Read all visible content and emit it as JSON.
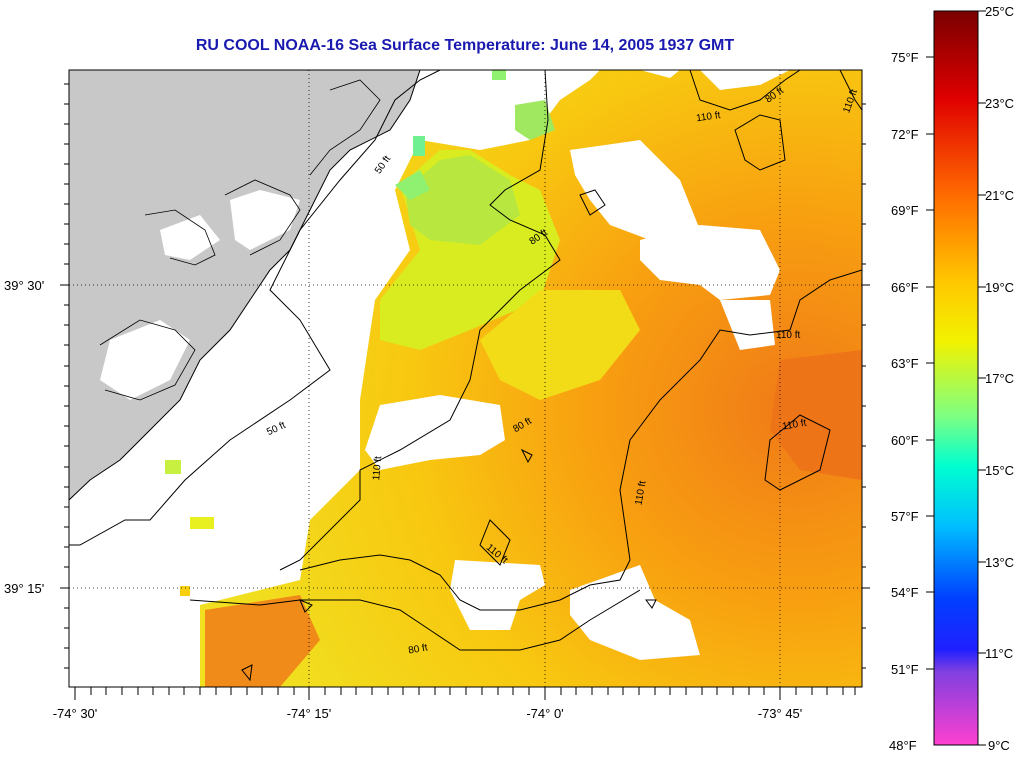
{
  "title": "RU COOL  NOAA-16  Sea Surface Temperature:  June 14, 2005 1937 GMT",
  "map": {
    "lat_labels": [
      {
        "text": "39° 30'",
        "value": 39.5
      },
      {
        "text": "39° 15'",
        "value": 39.25
      }
    ],
    "lon_labels": [
      {
        "text": "-74° 30'",
        "value": -74.5
      },
      {
        "text": "-74° 15'",
        "value": -74.25
      },
      {
        "text": "-74° 0'",
        "value": -74.0
      },
      {
        "text": "-73° 45'",
        "value": -73.75
      }
    ],
    "contour_labels": [
      "50 ft",
      "50 ft",
      "80 ft",
      "80 ft",
      "80 ft",
      "80 ft",
      "110 ft",
      "110 ft",
      "110 ft",
      "110 ft",
      "110 ft",
      "110 ft",
      "110 ft"
    ],
    "colors": {
      "land": "#c8c8c8",
      "no_data": "#ffffff",
      "title": "#1a1ab0"
    }
  },
  "colorbar": {
    "celsius": [
      "25°C",
      "23°C",
      "21°C",
      "19°C",
      "17°C",
      "15°C",
      "13°C",
      "11°C",
      "9°C"
    ],
    "fahrenheit": [
      "75°F",
      "72°F",
      "69°F",
      "66°F",
      "63°F",
      "60°F",
      "57°F",
      "54°F",
      "51°F",
      "48°F"
    ],
    "range_c": [
      9,
      25
    ]
  }
}
